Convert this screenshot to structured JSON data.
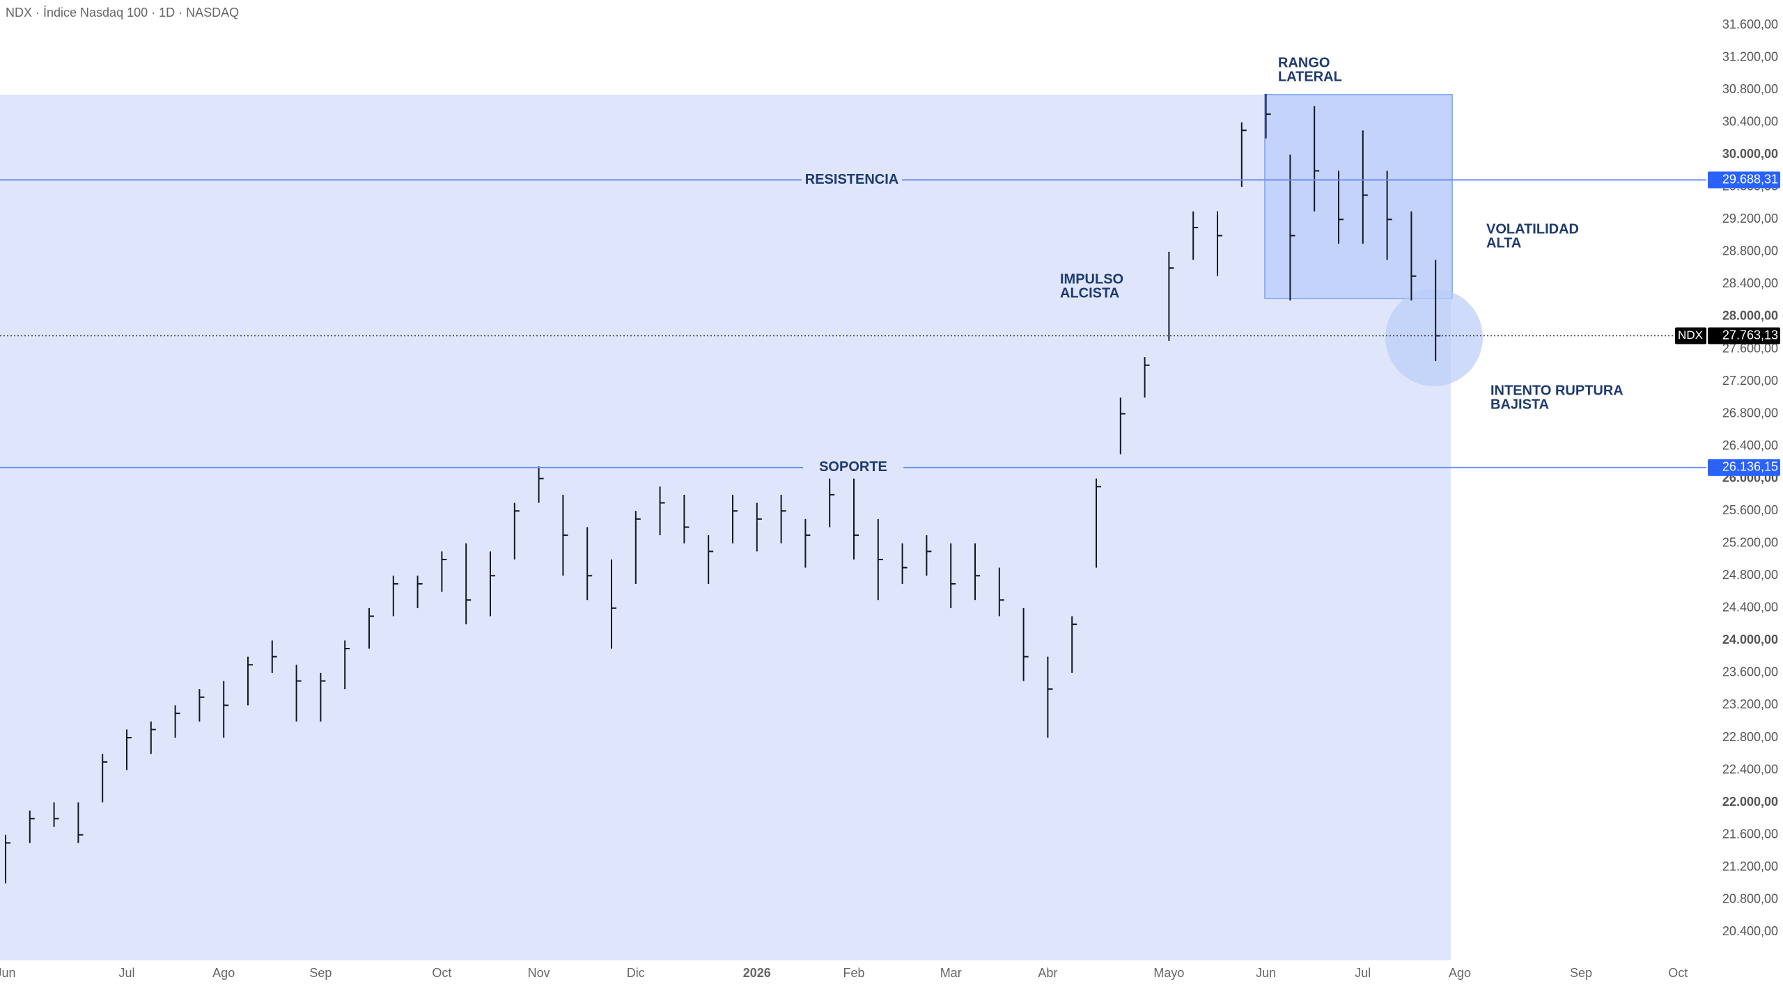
{
  "chart_data": {
    "type": "ohlc",
    "title": "NDX · Índice Nasdaq 100 · 1D · NASDAQ",
    "categories": [
      "Jun",
      null,
      null,
      null,
      null,
      "Jul",
      null,
      null,
      null,
      "Ago",
      null,
      null,
      null,
      "Sep",
      null,
      null,
      null,
      null,
      "Oct",
      null,
      null,
      null,
      "Nov",
      null,
      null,
      null,
      "Dic",
      null,
      null,
      null,
      null,
      "2026",
      null,
      null,
      null,
      "Feb",
      null,
      null,
      null,
      "Mar",
      null,
      null,
      null,
      "Abr",
      null,
      null,
      null,
      null,
      "Mayo",
      null,
      null,
      null,
      "Jun",
      null,
      null,
      null,
      "Jul",
      null,
      null,
      null,
      "Ago",
      null,
      null,
      null,
      null,
      "Sep",
      null,
      null,
      null,
      "Oct"
    ],
    "high": [
      21600,
      21900,
      22000,
      22000,
      22600,
      22900,
      23000,
      23200,
      23400,
      23500,
      23800,
      24000,
      23700,
      23600,
      24000,
      24400,
      24800,
      24800,
      25100,
      25200,
      25100,
      25700,
      26150,
      25800,
      25400,
      25000,
      25600,
      25900,
      25800,
      25300,
      25800,
      25700,
      25800,
      25500,
      26000,
      26000,
      25500,
      25200,
      25300,
      25200,
      25200,
      24900,
      24400,
      23800,
      24300,
      26000,
      27000,
      27500,
      28800,
      29300,
      29300,
      30400,
      30750,
      30000,
      30600,
      29800,
      30300,
      29800,
      29300,
      28700,
      null,
      null,
      null,
      null,
      null,
      null,
      null,
      null,
      null,
      null
    ],
    "low": [
      21000,
      21500,
      21700,
      21500,
      22000,
      22400,
      22600,
      22800,
      23000,
      22800,
      23200,
      23600,
      23000,
      23000,
      23400,
      23900,
      24300,
      24400,
      24600,
      24200,
      24300,
      25000,
      25700,
      24800,
      24500,
      23900,
      24700,
      25300,
      25200,
      24700,
      25200,
      25100,
      25200,
      24900,
      25400,
      25000,
      24500,
      24700,
      24800,
      24400,
      24500,
      24300,
      23500,
      22800,
      23600,
      24900,
      26300,
      27000,
      27700,
      28700,
      28500,
      29600,
      30200,
      28200,
      29300,
      28900,
      28900,
      28700,
      28200,
      27450,
      null,
      null,
      null,
      null,
      null,
      null,
      null,
      null,
      null,
      null
    ],
    "close": [
      21500,
      21800,
      21800,
      21600,
      22500,
      22800,
      22900,
      23100,
      23300,
      23200,
      23700,
      23800,
      23500,
      23500,
      23900,
      24300,
      24700,
      24700,
      25000,
      24500,
      24800,
      25600,
      26000,
      25300,
      24800,
      24400,
      25500,
      25700,
      25400,
      25100,
      25600,
      25500,
      25600,
      25300,
      25800,
      25300,
      25000,
      24900,
      25100,
      24700,
      24800,
      24500,
      23800,
      23400,
      24200,
      25900,
      26800,
      27400,
      28600,
      29100,
      29000,
      30300,
      30500,
      29000,
      29800,
      29200,
      29500,
      29200,
      28500,
      27763.13,
      null,
      null,
      null,
      null,
      null,
      null,
      null,
      null,
      null,
      null
    ],
    "color": "#131722",
    "ylim": [
      20050,
      31910
    ],
    "yticks": [
      {
        "value": 20400,
        "label": "20.400,00"
      },
      {
        "value": 20800,
        "label": "20.800,00"
      },
      {
        "value": 21200,
        "label": "21.200,00"
      },
      {
        "value": 21600,
        "label": "21.600,00"
      },
      {
        "value": 22000,
        "label": "22.000,00"
      },
      {
        "value": 22400,
        "label": "22.400,00"
      },
      {
        "value": 22800,
        "label": "22.800,00"
      },
      {
        "value": 23200,
        "label": "23.200,00"
      },
      {
        "value": 23600,
        "label": "23.600,00"
      },
      {
        "value": 24000,
        "label": "24.000,00"
      },
      {
        "value": 24400,
        "label": "24.400,00"
      },
      {
        "value": 24800,
        "label": "24.800,00"
      },
      {
        "value": 25200,
        "label": "25.200,00"
      },
      {
        "value": 25600,
        "label": "25.600,00"
      },
      {
        "value": 26000,
        "label": "26.000,00"
      },
      {
        "value": 26400,
        "label": "26.400,00"
      },
      {
        "value": 26800,
        "label": "26.800,00"
      },
      {
        "value": 27200,
        "label": "27.200,00"
      },
      {
        "value": 27600,
        "label": "27.600,00"
      },
      {
        "value": 28000,
        "label": "28.000,00"
      },
      {
        "value": 28400,
        "label": "28.400,00"
      },
      {
        "value": 28800,
        "label": "28.800,00"
      },
      {
        "value": 29200,
        "label": "29.200,00"
      },
      {
        "value": 29600,
        "label": "29.600,00"
      },
      {
        "value": 30000,
        "label": "30.000,00"
      },
      {
        "value": 30400,
        "label": "30.400,00"
      },
      {
        "value": 30800,
        "label": "30.800,00"
      },
      {
        "value": 31200,
        "label": "31.200,00"
      },
      {
        "value": 31600,
        "label": "31.600,00"
      }
    ],
    "grid": false,
    "levels": [
      {
        "value": 29688.31,
        "label": "29.688,31",
        "text": "RESISTENCIA"
      },
      {
        "value": 26136.15,
        "label": "26.136,15",
        "text": "SOPORTE"
      }
    ],
    "last": {
      "value": 27763.13,
      "label": "27.763,13",
      "symbol": "NDX"
    },
    "annotations": [
      {
        "lines": [
          "IMPULSO",
          "ALCISTA"
        ]
      },
      {
        "lines": [
          "RANGO",
          "LATERAL"
        ]
      },
      {
        "lines": [
          "VOLATILIDAD",
          "ALTA"
        ]
      },
      {
        "lines": [
          "INTENTO RUPTURA",
          "BAJISTA"
        ]
      }
    ]
  }
}
